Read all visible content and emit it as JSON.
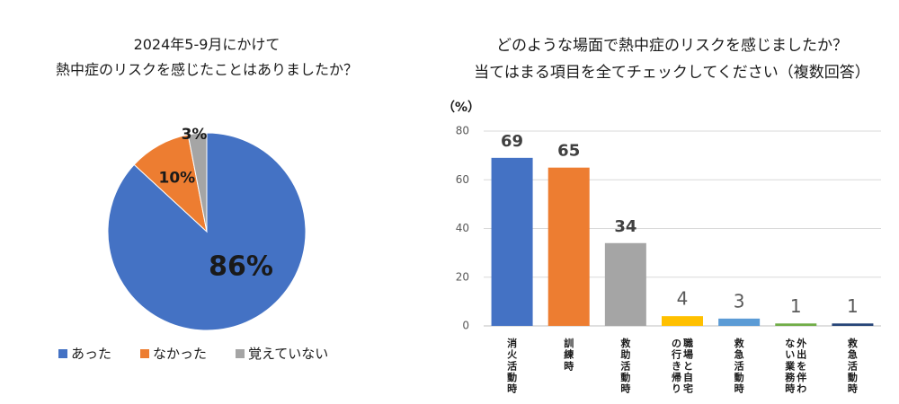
{
  "chart_data": [
    {
      "type": "pie",
      "title_lines": [
        "2024年5-9月にかけて",
        "熱中症のリスクを感じたことはありましたか？"
      ],
      "slices": [
        {
          "label": "あった",
          "value": 86,
          "display": "86%",
          "color": "#4472C4"
        },
        {
          "label": "なかった",
          "value": 10,
          "display": "10%",
          "color": "#ED7D31"
        },
        {
          "label": "覚えていない",
          "value": 3,
          "display": "3%",
          "color": "#A5A5A5"
        }
      ],
      "legend_position": "bottom"
    },
    {
      "type": "bar",
      "title_lines": [
        "どのような場面で熱中症のリスクを感じましたか？",
        "当てはまる項目を全てチェックしてください（複数回答）"
      ],
      "ylabel": "（%）",
      "ylim": [
        0,
        80
      ],
      "yticks": [
        "0",
        "20",
        "40",
        "60",
        "80"
      ],
      "grid": true,
      "categories": [
        {
          "lines": [
            "消火活動時"
          ],
          "value": 69,
          "label": "69",
          "color": "#4472C4"
        },
        {
          "lines": [
            "訓練時"
          ],
          "value": 65,
          "label": "65",
          "color": "#ED7D31"
        },
        {
          "lines": [
            "救助活動時"
          ],
          "value": 34,
          "label": "34",
          "color": "#A5A5A5"
        },
        {
          "lines": [
            "職場と自宅",
            "の行き帰り"
          ],
          "value": 4,
          "label": "4",
          "color": "#FFC000"
        },
        {
          "lines": [
            "救急活動時"
          ],
          "value": 3,
          "label": "3",
          "color": "#5B9BD5"
        },
        {
          "lines": [
            "外出を伴わ",
            "ない業務時"
          ],
          "value": 1,
          "label": "1",
          "color": "#70AD47"
        },
        {
          "lines": [
            "救急活動時"
          ],
          "value": 1,
          "label": "1",
          "color": "#264478"
        }
      ]
    }
  ]
}
